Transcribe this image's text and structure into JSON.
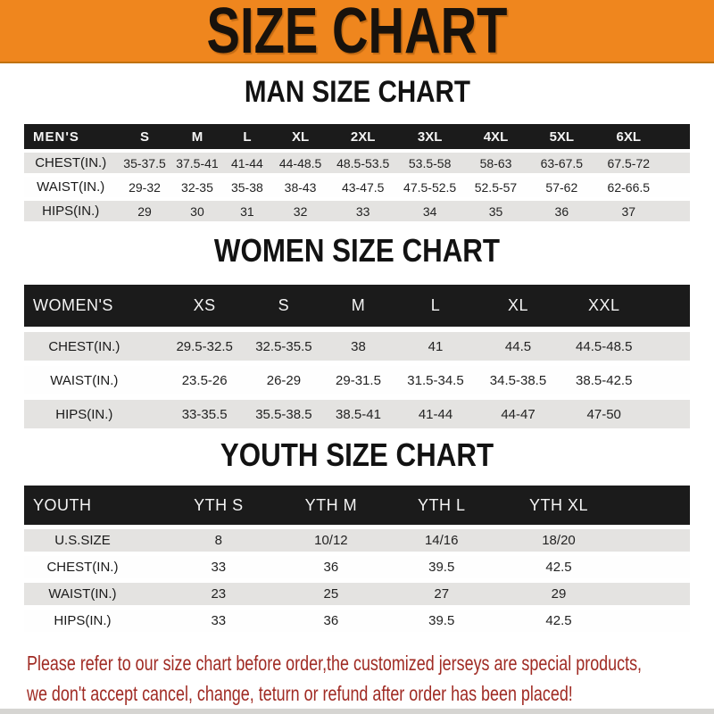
{
  "banner": {
    "title": "SIZE CHART"
  },
  "colors": {
    "banner_bg": "#ef861e",
    "header_bg": "#1b1b1b",
    "row_gray": "#e4e3e1",
    "footer_red": "#a02b24"
  },
  "sections": [
    {
      "heading": "MAN SIZE CHART",
      "table": {
        "corner_label": "MEN'S",
        "columns": [
          "S",
          "M",
          "L",
          "XL",
          "2XL",
          "3XL",
          "4XL",
          "5XL",
          "6XL"
        ],
        "rows": [
          {
            "label": "CHEST(IN.)",
            "values": [
              "35-37.5",
              "37.5-41",
              "41-44",
              "44-48.5",
              "48.5-53.5",
              "53.5-58",
              "58-63",
              "63-67.5",
              "67.5-72"
            ]
          },
          {
            "label": "WAIST(IN.)",
            "values": [
              "29-32",
              "32-35",
              "35-38",
              "38-43",
              "43-47.5",
              "47.5-52.5",
              "52.5-57",
              "57-62",
              "62-66.5"
            ]
          },
          {
            "label": "HIPS(IN.)",
            "values": [
              "29",
              "30",
              "31",
              "32",
              "33",
              "34",
              "35",
              "36",
              "37"
            ]
          }
        ]
      }
    },
    {
      "heading": "WOMEN SIZE CHART",
      "table": {
        "corner_label": "WOMEN'S",
        "columns": [
          "XS",
          "S",
          "M",
          "L",
          "XL",
          "XXL"
        ],
        "rows": [
          {
            "label": "CHEST(IN.)",
            "values": [
              "29.5-32.5",
              "32.5-35.5",
              "38",
              "41",
              "44.5",
              "44.5-48.5"
            ]
          },
          {
            "label": "WAIST(IN.)",
            "values": [
              "23.5-26",
              "26-29",
              "29-31.5",
              "31.5-34.5",
              "34.5-38.5",
              "38.5-42.5"
            ]
          },
          {
            "label": "HIPS(IN.)",
            "values": [
              "33-35.5",
              "35.5-38.5",
              "38.5-41",
              "41-44",
              "44-47",
              "47-50"
            ]
          }
        ]
      }
    },
    {
      "heading": "YOUTH SIZE CHART",
      "table": {
        "corner_label": "YOUTH",
        "columns": [
          "YTH S",
          "YTH M",
          "YTH L",
          "YTH XL"
        ],
        "rows": [
          {
            "label": "U.S.SIZE",
            "values": [
              "8",
              "10/12",
              "14/16",
              "18/20"
            ]
          },
          {
            "label": "CHEST(IN.)",
            "values": [
              "33",
              "36",
              "39.5",
              "42.5"
            ]
          },
          {
            "label": "WAIST(IN.)",
            "values": [
              "23",
              "25",
              "27",
              "29"
            ]
          },
          {
            "label": "HIPS(IN.)",
            "values": [
              "33",
              "36",
              "39.5",
              "42.5"
            ]
          }
        ]
      }
    }
  ],
  "footer": {
    "line1": "Please refer to our size chart before order,the customized jerseys are special products,",
    "line2": "we don't accept cancel, change, teturn or refund after order has been placed!"
  }
}
